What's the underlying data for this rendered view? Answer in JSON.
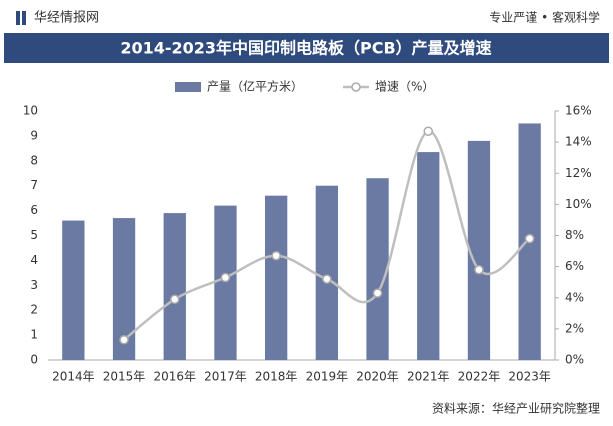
{
  "header": {
    "brand": "华经情报网",
    "slogan": "专业严谨 • 客观科学"
  },
  "chart_data": {
    "type": "combo",
    "title": "2014-2023年中国印制电路板（PCB）产量及增速",
    "source": "资料来源：华经产业研究院整理",
    "categories": [
      "2014年",
      "2015年",
      "2016年",
      "2017年",
      "2018年",
      "2019年",
      "2020年",
      "2021年",
      "2022年",
      "2023年"
    ],
    "series": [
      {
        "name": "产量（亿平方米）",
        "type": "bar",
        "color": "#6a7aa3",
        "values": [
          5.6,
          5.7,
          5.9,
          6.2,
          6.6,
          7.0,
          7.3,
          8.35,
          8.8,
          9.5
        ]
      },
      {
        "name": "增速（%）",
        "type": "line",
        "axis": "y2",
        "color": "#bfbfbf",
        "values": [
          null,
          1.3,
          3.9,
          5.3,
          6.7,
          5.2,
          4.3,
          14.7,
          5.8,
          7.8
        ]
      }
    ],
    "ylim": [
      0,
      10
    ],
    "yticks": [
      0,
      1,
      2,
      3,
      4,
      5,
      6,
      7,
      8,
      9,
      10
    ],
    "y2lim": [
      0,
      16
    ],
    "y2ticks": [
      {
        "value": 0,
        "label": "0%"
      },
      {
        "value": 2,
        "label": "2%"
      },
      {
        "value": 4,
        "label": "4%"
      },
      {
        "value": 6,
        "label": "6%"
      },
      {
        "value": 8,
        "label": "8%"
      },
      {
        "value": 10,
        "label": "10%"
      },
      {
        "value": 12,
        "label": "12%"
      },
      {
        "value": 14,
        "label": "14%"
      },
      {
        "value": 16,
        "label": "16%"
      }
    ],
    "legend": "top"
  }
}
